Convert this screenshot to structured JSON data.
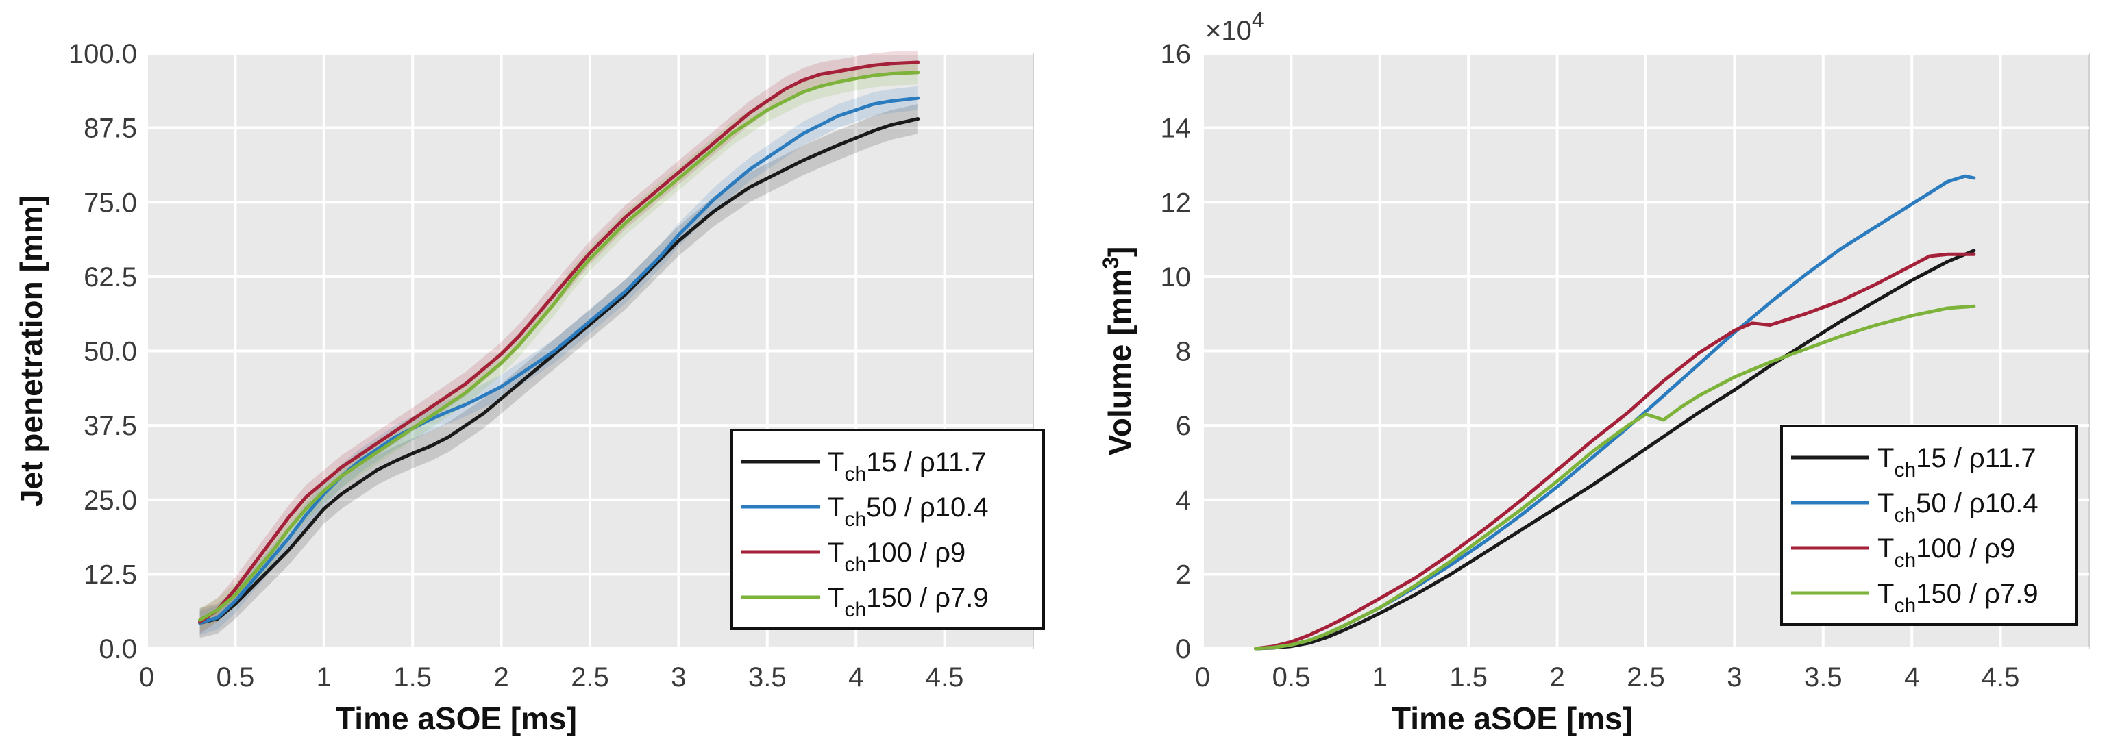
{
  "colors": {
    "Tch15": "#1a1a1a",
    "Tch50": "#2b7bbf",
    "Tch100": "#a5213a",
    "Tch150": "#7db33a",
    "plot_bg": "#e9e9e9",
    "grid": "#ffffff"
  },
  "chart_data": [
    {
      "type": "line",
      "title": "",
      "xlabel": "Time aSOE [ms]",
      "ylabel": "Jet penetration [mm]",
      "xlim": [
        0,
        5
      ],
      "ylim": [
        0,
        100
      ],
      "xticks": [
        0,
        0.5,
        1,
        1.5,
        2,
        2.5,
        3,
        3.5,
        4,
        4.5
      ],
      "xtick_labels": [
        "0",
        "0.5",
        "1",
        "1.5",
        "2",
        "2.5",
        "3",
        "3.5",
        "4",
        "4.5"
      ],
      "yticks": [
        0,
        12.5,
        25,
        37.5,
        50,
        62.5,
        75,
        87.5,
        100
      ],
      "ytick_labels": [
        "0.0",
        "12.5",
        "25.0",
        "37.5",
        "50.0",
        "62.5",
        "75.0",
        "87.5",
        "100.0"
      ],
      "grid": true,
      "legend_position": "bottom-right",
      "series": [
        {
          "key": "Tch15",
          "name": "T",
          "sub": "ch",
          "rest": "15 / ρ11.7",
          "band": 2.5,
          "x": [
            0.3,
            0.4,
            0.5,
            0.6,
            0.7,
            0.8,
            0.9,
            1.0,
            1.1,
            1.2,
            1.3,
            1.4,
            1.5,
            1.6,
            1.7,
            1.8,
            1.9,
            2.0,
            2.1,
            2.2,
            2.3,
            2.4,
            2.5,
            2.6,
            2.7,
            2.8,
            2.9,
            3.0,
            3.1,
            3.2,
            3.3,
            3.4,
            3.5,
            3.6,
            3.7,
            3.8,
            3.9,
            4.0,
            4.1,
            4.2,
            4.35
          ],
          "y": [
            4.3,
            5.0,
            7.5,
            10.5,
            13.5,
            16.5,
            20.0,
            23.5,
            26.0,
            28.0,
            30.0,
            31.5,
            32.8,
            34.0,
            35.5,
            37.5,
            39.5,
            42.0,
            44.5,
            47.0,
            49.5,
            52.0,
            54.5,
            57.0,
            59.5,
            62.5,
            65.5,
            68.5,
            71.0,
            73.5,
            75.5,
            77.5,
            79.0,
            80.5,
            82.0,
            83.3,
            84.6,
            85.8,
            87.0,
            88.0,
            89.0
          ]
        },
        {
          "key": "Tch50",
          "name": "T",
          "sub": "ch",
          "rest": "50 / ρ10.4",
          "band": 2.0,
          "x": [
            0.3,
            0.4,
            0.5,
            0.6,
            0.7,
            0.8,
            0.9,
            1.0,
            1.1,
            1.2,
            1.3,
            1.4,
            1.5,
            1.6,
            1.7,
            1.8,
            1.9,
            2.0,
            2.1,
            2.2,
            2.3,
            2.4,
            2.5,
            2.6,
            2.7,
            2.8,
            2.9,
            3.0,
            3.1,
            3.2,
            3.3,
            3.4,
            3.5,
            3.6,
            3.7,
            3.8,
            3.9,
            4.0,
            4.1,
            4.2,
            4.35
          ],
          "y": [
            4.3,
            5.2,
            8.0,
            11.5,
            15.0,
            18.5,
            22.5,
            26.0,
            29.0,
            31.5,
            33.5,
            35.5,
            37.0,
            38.5,
            39.8,
            41.0,
            42.5,
            44.0,
            46.0,
            48.0,
            50.0,
            52.5,
            55.0,
            57.5,
            60.0,
            63.0,
            66.0,
            69.5,
            72.5,
            75.5,
            78.0,
            80.5,
            82.5,
            84.5,
            86.5,
            88.0,
            89.5,
            90.5,
            91.5,
            92.0,
            92.5
          ]
        },
        {
          "key": "Tch100",
          "name": "T",
          "sub": "ch",
          "rest": "100 / ρ9",
          "band": 2.0,
          "x": [
            0.3,
            0.4,
            0.5,
            0.6,
            0.7,
            0.8,
            0.9,
            1.0,
            1.1,
            1.2,
            1.3,
            1.4,
            1.5,
            1.6,
            1.7,
            1.8,
            1.9,
            2.0,
            2.1,
            2.2,
            2.3,
            2.4,
            2.5,
            2.6,
            2.7,
            2.8,
            2.9,
            3.0,
            3.1,
            3.2,
            3.3,
            3.4,
            3.5,
            3.6,
            3.7,
            3.8,
            3.9,
            4.0,
            4.1,
            4.2,
            4.35
          ],
          "y": [
            4.5,
            6.5,
            10.0,
            14.0,
            18.0,
            22.0,
            25.5,
            28.0,
            30.5,
            32.5,
            34.5,
            36.5,
            38.5,
            40.5,
            42.5,
            44.5,
            47.0,
            49.5,
            52.5,
            56.0,
            59.5,
            63.0,
            66.5,
            69.5,
            72.5,
            75.0,
            77.5,
            80.0,
            82.5,
            85.0,
            87.5,
            90.0,
            92.0,
            94.0,
            95.5,
            96.5,
            97.0,
            97.5,
            98.0,
            98.3,
            98.5
          ]
        },
        {
          "key": "Tch150",
          "name": "T",
          "sub": "ch",
          "rest": "150 / ρ7.9",
          "band": 2.0,
          "x": [
            0.3,
            0.4,
            0.5,
            0.6,
            0.7,
            0.8,
            0.9,
            1.0,
            1.1,
            1.2,
            1.3,
            1.4,
            1.5,
            1.6,
            1.7,
            1.8,
            1.9,
            2.0,
            2.1,
            2.2,
            2.3,
            2.4,
            2.5,
            2.6,
            2.7,
            2.8,
            2.9,
            3.0,
            3.1,
            3.2,
            3.3,
            3.4,
            3.5,
            3.6,
            3.7,
            3.8,
            3.9,
            4.0,
            4.1,
            4.2,
            4.35
          ],
          "y": [
            4.8,
            6.5,
            9.0,
            12.5,
            16.0,
            20.0,
            23.5,
            26.5,
            29.0,
            31.0,
            33.0,
            35.0,
            37.0,
            39.0,
            41.0,
            43.0,
            45.5,
            48.0,
            51.0,
            54.5,
            58.0,
            62.0,
            65.5,
            68.5,
            71.5,
            74.0,
            76.5,
            79.0,
            81.5,
            84.0,
            86.5,
            88.5,
            90.5,
            92.0,
            93.5,
            94.5,
            95.2,
            95.8,
            96.3,
            96.6,
            96.8
          ]
        }
      ]
    },
    {
      "type": "line",
      "title": "",
      "xlabel": "Time aSOE [ms]",
      "ylabel": "Volume [mm",
      "ylabel_sup": "3",
      "ylabel_end": "]",
      "exponent": "×10",
      "exponent_sup": "4",
      "xlim": [
        0,
        5
      ],
      "ylim": [
        0,
        16
      ],
      "xticks": [
        0,
        0.5,
        1,
        1.5,
        2,
        2.5,
        3,
        3.5,
        4,
        4.5
      ],
      "xtick_labels": [
        "0",
        "0.5",
        "1",
        "1.5",
        "2",
        "2.5",
        "3",
        "3.5",
        "4",
        "4.5"
      ],
      "yticks": [
        0,
        2,
        4,
        6,
        8,
        10,
        12,
        14,
        16
      ],
      "ytick_labels": [
        "0",
        "2",
        "4",
        "6",
        "8",
        "10",
        "12",
        "14",
        "16"
      ],
      "grid": true,
      "legend_position": "bottom-right",
      "series": [
        {
          "key": "Tch15",
          "name": "T",
          "sub": "ch",
          "rest": "15 / ρ11.7",
          "x": [
            0.3,
            0.4,
            0.5,
            0.6,
            0.7,
            0.8,
            0.9,
            1.0,
            1.2,
            1.4,
            1.6,
            1.8,
            2.0,
            2.2,
            2.4,
            2.6,
            2.8,
            3.0,
            3.2,
            3.4,
            3.6,
            3.8,
            4.0,
            4.2,
            4.35
          ],
          "y": [
            0.0,
            0.02,
            0.06,
            0.15,
            0.3,
            0.5,
            0.72,
            0.95,
            1.45,
            2.0,
            2.6,
            3.2,
            3.8,
            4.4,
            5.05,
            5.7,
            6.35,
            6.95,
            7.6,
            8.2,
            8.8,
            9.35,
            9.9,
            10.4,
            10.7
          ]
        },
        {
          "key": "Tch50",
          "name": "T",
          "sub": "ch",
          "rest": "50 / ρ10.4",
          "x": [
            0.3,
            0.4,
            0.5,
            0.6,
            0.7,
            0.8,
            0.9,
            1.0,
            1.2,
            1.4,
            1.6,
            1.8,
            2.0,
            2.2,
            2.4,
            2.6,
            2.8,
            3.0,
            3.2,
            3.4,
            3.6,
            3.8,
            4.0,
            4.1,
            4.2,
            4.3,
            4.35
          ],
          "y": [
            0.0,
            0.03,
            0.1,
            0.22,
            0.4,
            0.62,
            0.86,
            1.1,
            1.65,
            2.25,
            2.9,
            3.6,
            4.35,
            5.15,
            5.95,
            6.8,
            7.65,
            8.5,
            9.3,
            10.05,
            10.75,
            11.35,
            11.95,
            12.25,
            12.55,
            12.7,
            12.65
          ]
        },
        {
          "key": "Tch100",
          "name": "T",
          "sub": "ch",
          "rest": "100 / ρ9",
          "x": [
            0.3,
            0.4,
            0.5,
            0.6,
            0.7,
            0.8,
            0.9,
            1.0,
            1.2,
            1.4,
            1.6,
            1.8,
            2.0,
            2.2,
            2.4,
            2.6,
            2.8,
            3.0,
            3.1,
            3.2,
            3.4,
            3.6,
            3.8,
            4.0,
            4.1,
            4.2,
            4.35
          ],
          "y": [
            0.0,
            0.06,
            0.18,
            0.36,
            0.58,
            0.82,
            1.08,
            1.35,
            1.9,
            2.55,
            3.25,
            4.0,
            4.8,
            5.6,
            6.35,
            7.2,
            7.95,
            8.55,
            8.75,
            8.7,
            9.0,
            9.35,
            9.8,
            10.3,
            10.55,
            10.6,
            10.6
          ]
        },
        {
          "key": "Tch150",
          "name": "T",
          "sub": "ch",
          "rest": "150 / ρ7.9",
          "x": [
            0.3,
            0.4,
            0.5,
            0.6,
            0.7,
            0.8,
            0.9,
            1.0,
            1.2,
            1.4,
            1.6,
            1.8,
            2.0,
            2.2,
            2.4,
            2.5,
            2.6,
            2.7,
            2.8,
            3.0,
            3.2,
            3.4,
            3.6,
            3.8,
            4.0,
            4.2,
            4.35
          ],
          "y": [
            0.0,
            0.03,
            0.1,
            0.22,
            0.4,
            0.62,
            0.86,
            1.1,
            1.7,
            2.35,
            3.05,
            3.75,
            4.5,
            5.3,
            6.0,
            6.3,
            6.15,
            6.5,
            6.8,
            7.3,
            7.7,
            8.05,
            8.4,
            8.7,
            8.95,
            9.15,
            9.2
          ]
        }
      ]
    }
  ]
}
